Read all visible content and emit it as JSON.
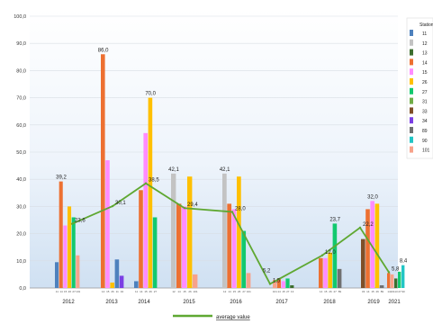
{
  "chart_data": {
    "type": "bar",
    "ylim": [
      0,
      100
    ],
    "yticks": [
      "0,0",
      "10,0",
      "20,0",
      "30,0",
      "40,0",
      "50,0",
      "60,0",
      "70,0",
      "80,0",
      "90,0",
      "100,0"
    ],
    "legend_title": "Station",
    "legend_position": "right",
    "grid": true,
    "categories": [
      {
        "label": "2012",
        "bars": [
          {
            "s": "11",
            "v": 9.5
          },
          {
            "s": "14",
            "v": 39.2
          },
          {
            "s": "15",
            "v": 23
          },
          {
            "s": "26",
            "v": 30
          },
          {
            "s": "27",
            "v": 26
          },
          {
            "s": "101",
            "v": 12
          }
        ],
        "value_labels": [
          {
            "v": "39,2",
            "bar": 1
          }
        ]
      },
      {
        "label": "2013",
        "bars": [
          {
            "s": "14",
            "v": 86
          },
          {
            "s": "15",
            "v": 47
          },
          {
            "s": "26",
            "v": 2
          },
          {
            "s": "11",
            "v": 10.5
          },
          {
            "s": "34",
            "v": 4.5
          }
        ],
        "value_labels": [
          {
            "v": "86,0",
            "bar": 0
          }
        ]
      },
      {
        "label": "2014",
        "bars": [
          {
            "s": "11",
            "v": 2.5
          },
          {
            "s": "14",
            "v": 36
          },
          {
            "s": "15",
            "v": 57
          },
          {
            "s": "26",
            "v": 70
          },
          {
            "s": "27",
            "v": 26
          }
        ],
        "value_labels": [
          {
            "v": "70,0",
            "bar": 3
          }
        ]
      },
      {
        "label": "2015",
        "bars": [
          {
            "s": "12",
            "v": 42.1
          },
          {
            "s": "14",
            "v": 31
          },
          {
            "s": "15",
            "v": 30
          },
          {
            "s": "26",
            "v": 41
          },
          {
            "s": "101",
            "v": 5
          }
        ],
        "value_labels": [
          {
            "v": "42,1",
            "bar": 0
          }
        ]
      },
      {
        "label": "2016",
        "bars": [
          {
            "s": "12",
            "v": 42.1
          },
          {
            "s": "14",
            "v": 31
          },
          {
            "s": "15",
            "v": 29
          },
          {
            "s": "26",
            "v": 41
          },
          {
            "s": "27",
            "v": 21
          },
          {
            "s": "101",
            "v": 5.5
          }
        ],
        "value_labels": [
          {
            "v": "42,1",
            "bar": 0
          }
        ]
      },
      {
        "label": "2017",
        "bars": [
          {
            "s": "101",
            "v": 3
          },
          {
            "s": "14",
            "v": 3.5
          },
          {
            "s": "15",
            "v": 2.5
          },
          {
            "s": "27",
            "v": 3.5
          },
          {
            "s": "13",
            "v": 1
          }
        ],
        "value_labels": []
      },
      {
        "label": "2018",
        "bars": [
          {
            "s": "14",
            "v": 11
          },
          {
            "s": "15",
            "v": 11
          },
          {
            "s": "26",
            "v": 13
          },
          {
            "s": "27",
            "v": 23.7
          },
          {
            "s": "89",
            "v": 7
          }
        ],
        "value_labels": [
          {
            "v": "23,7",
            "bar": 3
          }
        ]
      },
      {
        "label": "2019",
        "bars": [
          {
            "s": "33",
            "v": 18
          },
          {
            "s": "14",
            "v": 29
          },
          {
            "s": "15",
            "v": 32
          },
          {
            "s": "26",
            "v": 31
          },
          {
            "s": "89",
            "v": 1
          }
        ],
        "value_labels": [
          {
            "v": "32,0",
            "bar": 2
          }
        ]
      },
      {
        "label": "2021",
        "bars": [
          {
            "s": "14",
            "v": 5.5
          },
          {
            "s": "101",
            "v": 5
          },
          {
            "s": "13",
            "v": 3.5
          },
          {
            "s": "27",
            "v": 6
          },
          {
            "s": "90",
            "v": 8.4
          }
        ],
        "value_labels": [
          {
            "v": "8,4",
            "bar": 4
          }
        ]
      }
    ],
    "bar_sublabels": [
      [
        "11",
        "14",
        "15",
        "26",
        "27",
        "101"
      ],
      [
        "14",
        "15",
        "26",
        "11",
        "34"
      ],
      [
        "11",
        "14",
        "15",
        "26",
        "27"
      ],
      [
        "12",
        "14",
        "15",
        "26",
        "101"
      ],
      [
        "12",
        "14",
        "15",
        "26",
        "27",
        "101"
      ],
      [
        "101",
        "14",
        "15",
        "27",
        "13"
      ],
      [
        "14",
        "15",
        "26",
        "27",
        "89"
      ],
      [
        "33",
        "14",
        "15",
        "26",
        "89"
      ],
      [
        "14",
        "101",
        "13",
        "27",
        "90"
      ]
    ],
    "series_colors": {
      "11": "#4e81bd",
      "12": "#c3c3c3",
      "13": "#3c6e2e",
      "14": "#ed7031",
      "15": "#ff8cff",
      "26": "#ffc000",
      "27": "#12c96e",
      "31": "#70ad47",
      "33": "#7f4f28",
      "34": "#7b3fe4",
      "89": "#707070",
      "90": "#22c5c5",
      "101": "#f7a28a"
    },
    "legend": [
      {
        "name": "11",
        "color": "#4e81bd"
      },
      {
        "name": "12",
        "color": "#c3c3c3"
      },
      {
        "name": "13",
        "color": "#3c6e2e"
      },
      {
        "name": "14",
        "color": "#ed7031"
      },
      {
        "name": "15",
        "color": "#ff8cff"
      },
      {
        "name": "26",
        "color": "#ffc000"
      },
      {
        "name": "27",
        "color": "#12c96e"
      },
      {
        "name": "31",
        "color": "#70ad47"
      },
      {
        "name": "33",
        "color": "#7f4f28"
      },
      {
        "name": "34",
        "color": "#7b3fe4"
      },
      {
        "name": "89",
        "color": "#707070"
      },
      {
        "name": "90",
        "color": "#22c5c5"
      },
      {
        "name": "101",
        "color": "#f7a28a"
      }
    ],
    "average": {
      "name": "average value",
      "color": "#5fa832",
      "values": [
        23.6,
        30.1,
        38.5,
        29.4,
        28.0,
        1.5,
        12.0,
        22.2,
        5.8
      ],
      "labels": [
        "23,6",
        "30,1",
        "38,5",
        "29,4",
        "28,0",
        "1,5",
        "12,0",
        "22,2",
        "5,8"
      ],
      "extra_labels": [
        {
          "cat": 5,
          "text": "5,2",
          "v": 5.2
        }
      ]
    }
  }
}
